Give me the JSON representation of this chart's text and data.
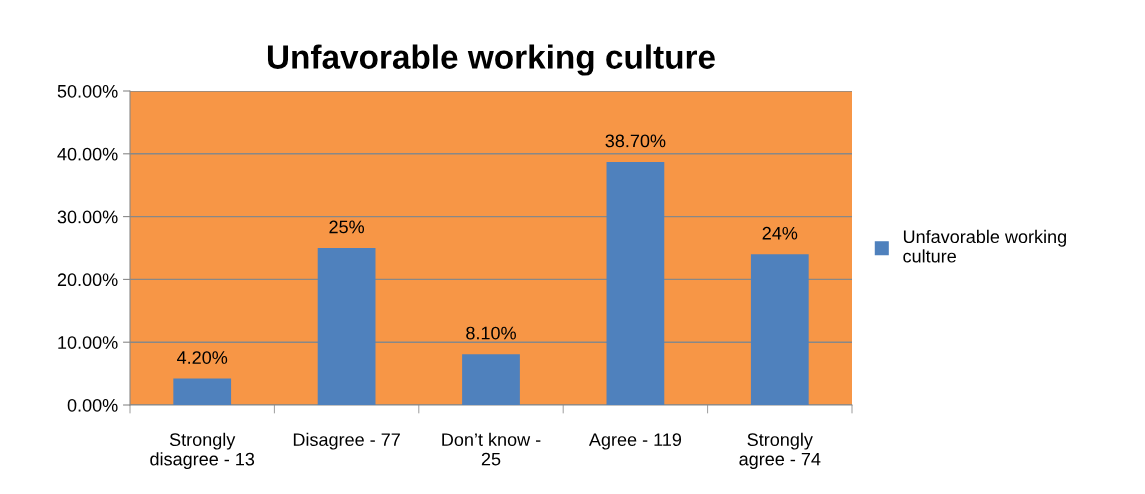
{
  "chart_data": {
    "type": "bar",
    "title": "Unfavorable working culture",
    "categories": [
      "Strongly\ndisagree - 13",
      "Disagree - 77",
      "Don’t know -\n25",
      "Agree - 119",
      "Strongly\nagree - 74"
    ],
    "series": [
      {
        "name": "Unfavorable working\nculture",
        "color": "#4f81bd",
        "values": [
          4.2,
          25,
          8.1,
          38.7,
          24
        ],
        "value_labels": [
          "4.20%",
          "25%",
          "8.10%",
          "38.70%",
          "24%"
        ]
      }
    ],
    "ylim": [
      0,
      50
    ],
    "yticks": [
      {
        "value": 0,
        "label": "0.00%"
      },
      {
        "value": 10,
        "label": "10.00%"
      },
      {
        "value": 20,
        "label": "20.00%"
      },
      {
        "value": 30,
        "label": "30.00%"
      },
      {
        "value": 40,
        "label": "40.00%"
      },
      {
        "value": 50,
        "label": "50.00%"
      }
    ],
    "grid": "y",
    "legend": "right"
  }
}
